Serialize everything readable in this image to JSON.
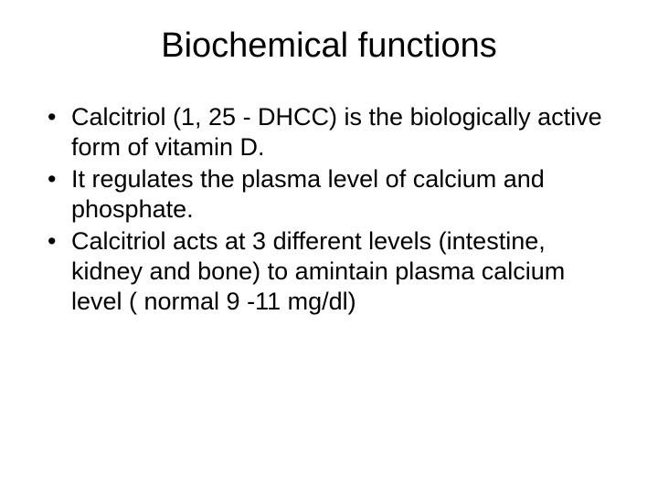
{
  "slide": {
    "title": "Biochemical functions",
    "title_fontsize": 38,
    "body_fontsize": 27,
    "text_color": "#000000",
    "background_color": "#ffffff",
    "font_family": "Arial",
    "bullets": [
      "Calcitriol (1, 25 - DHCC) is the biologically active form of vitamin D.",
      "It regulates the plasma level of calcium and phosphate.",
      "Calcitriol acts at 3 different levels (intestine, kidney and bone) to amintain plasma calcium level ( normal 9 -11 mg/dl)"
    ]
  }
}
